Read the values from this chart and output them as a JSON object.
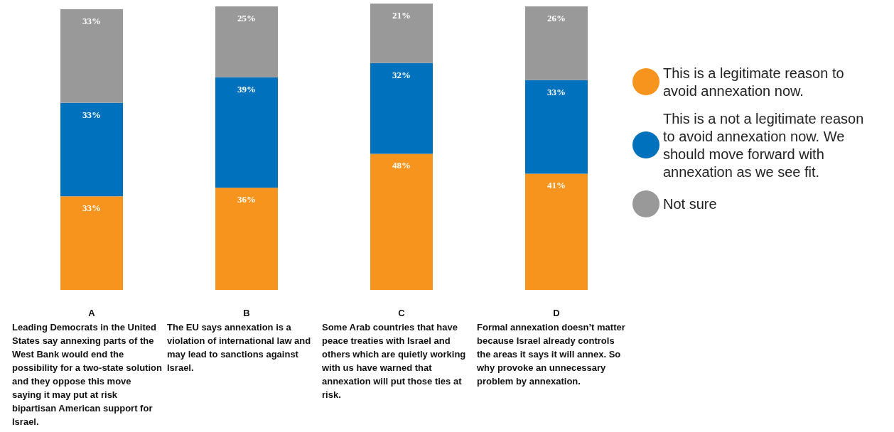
{
  "chart_data": {
    "type": "bar",
    "stacked": true,
    "categories": [
      "A",
      "B",
      "C",
      "D"
    ],
    "series": [
      {
        "name": "This is a legitimate reason to avoid annexation now.",
        "color": "#f7941d",
        "values": [
          33,
          36,
          48,
          41
        ],
        "value_labels": [
          "33%",
          "36%",
          "48%",
          "41%"
        ]
      },
      {
        "name": "This is a not a legitimate reason to avoid annexation now. We should move forward with annexation as we see fit.",
        "color": "#0071bc",
        "values": [
          33,
          39,
          32,
          33
        ],
        "value_labels": [
          "33%",
          "39%",
          "32%",
          "33%"
        ]
      },
      {
        "name": "Not sure",
        "color": "#999999",
        "values": [
          33,
          25,
          21,
          26
        ],
        "value_labels": [
          "33%",
          "25%",
          "21%",
          "26%"
        ]
      }
    ],
    "ylim": [
      0,
      101
    ],
    "tick_labels": "x",
    "grid": false,
    "legend": "right",
    "annotations": [
      "Leading Democrats in the United States say annexing parts of the West Bank would end the possibility for a two-state solution and they oppose this move saying it may put at risk bipartisan American support for Israel.",
      "The EU says annexation is a violation of international law and may lead to sanctions against Israel.",
      "Some Arab countries that have peace treaties with Israel and others which are quietly working with us have warned that annexation will put those ties at risk.",
      "Formal annexation doesn’t matter because Israel already controls the areas it says it will annex. So why provoke an unnecessary problem by annexation."
    ]
  }
}
